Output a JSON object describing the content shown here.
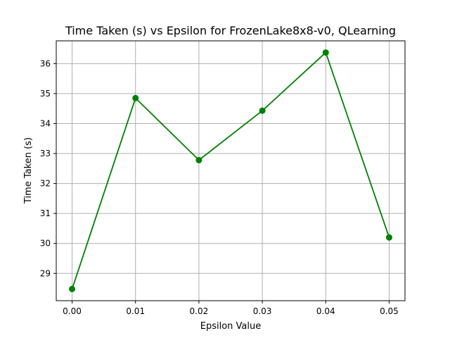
{
  "chart_data": {
    "type": "line",
    "title": "Time Taken (s) vs Epsilon for FrozenLake8x8-v0, QLearning",
    "xlabel": "Epsilon Value",
    "ylabel": "Time Taken (s)",
    "x": [
      0.0,
      0.01,
      0.02,
      0.03,
      0.04,
      0.05
    ],
    "series": [
      {
        "values": [
          28.48,
          34.85,
          32.78,
          34.43,
          36.37,
          30.2
        ],
        "color": "#008000"
      }
    ],
    "xlim": [
      -0.0025,
      0.0525
    ],
    "ylim": [
      28.09,
      36.76
    ],
    "xticks": [
      0.0,
      0.01,
      0.02,
      0.03,
      0.04,
      0.05
    ],
    "xtick_labels": [
      "0.00",
      "0.01",
      "0.02",
      "0.03",
      "0.04",
      "0.05"
    ],
    "yticks": [
      29,
      30,
      31,
      32,
      33,
      34,
      35,
      36
    ],
    "ytick_labels": [
      "29",
      "30",
      "31",
      "32",
      "33",
      "34",
      "35",
      "36"
    ],
    "grid": true,
    "marker": "circle"
  }
}
